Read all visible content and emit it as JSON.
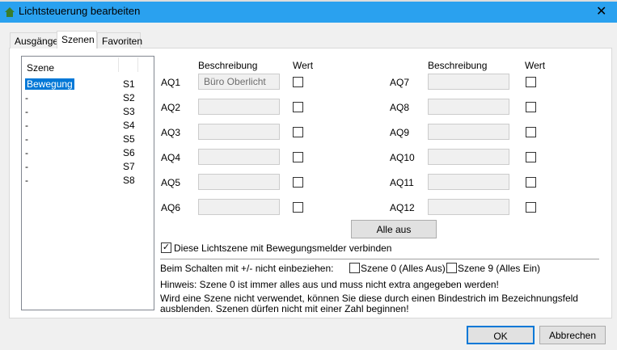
{
  "window": {
    "title": "Lichtsteuerung bearbeiten",
    "icon": "house-icon",
    "close": "✕"
  },
  "tabs": [
    {
      "label": "Ausgänge"
    },
    {
      "label": "Szenen",
      "active": true
    },
    {
      "label": "Favoriten"
    }
  ],
  "scene_list": {
    "header": "Szene",
    "rows": [
      {
        "name": "Bewegung",
        "id": "S1",
        "selected": true
      },
      {
        "name": "-",
        "id": "S2"
      },
      {
        "name": "-",
        "id": "S3"
      },
      {
        "name": "-",
        "id": "S4"
      },
      {
        "name": "-",
        "id": "S5"
      },
      {
        "name": "-",
        "id": "S6"
      },
      {
        "name": "-",
        "id": "S7"
      },
      {
        "name": "-",
        "id": "S8"
      }
    ]
  },
  "outputs": {
    "desc_header": "Beschreibung",
    "value_header": "Wert",
    "left": [
      {
        "label": "AQ1",
        "desc": "Büro Oberlicht"
      },
      {
        "label": "AQ2",
        "desc": ""
      },
      {
        "label": "AQ3",
        "desc": ""
      },
      {
        "label": "AQ4",
        "desc": ""
      },
      {
        "label": "AQ5",
        "desc": ""
      },
      {
        "label": "AQ6",
        "desc": ""
      }
    ],
    "right": [
      {
        "label": "AQ7",
        "desc": ""
      },
      {
        "label": "AQ8",
        "desc": ""
      },
      {
        "label": "AQ9",
        "desc": ""
      },
      {
        "label": "AQ10",
        "desc": ""
      },
      {
        "label": "AQ11",
        "desc": ""
      },
      {
        "label": "AQ12",
        "desc": ""
      }
    ]
  },
  "all_off": "Alle aus",
  "motion_checkbox": {
    "label": "Diese Lichtszene mit Bewegungsmelder verbinden",
    "checked": true
  },
  "exclude": {
    "label": "Beim Schalten mit +/- nicht einbeziehen:",
    "scene0": "Szene 0 (Alles Aus)",
    "scene9": "Szene 9 (Alles Ein)"
  },
  "hint1": "Hinweis: Szene 0 ist immer alles aus und muss nicht extra angegeben werden!",
  "hint2a": "Wird eine Szene nicht verwendet, können Sie diese durch einen Bindestrich im Bezeichnungsfeld",
  "hint2b": "ausblenden. Szenen dürfen nicht mit einer Zahl beginnen!",
  "ok": "OK",
  "cancel": "Abbrechen"
}
